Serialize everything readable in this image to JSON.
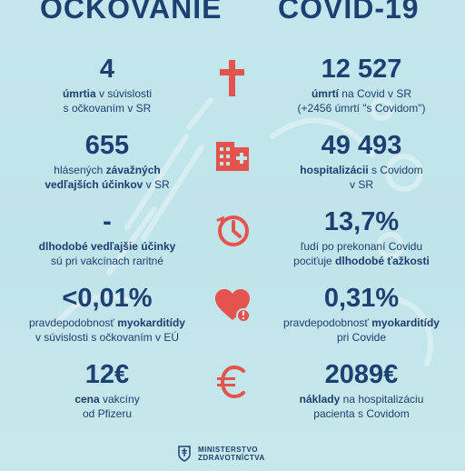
{
  "header": {
    "left_title": "OČKOVANIE",
    "right_title": "COVID-19"
  },
  "rows": [
    {
      "icon": "cross-icon",
      "left": {
        "big": "4",
        "pre": "",
        "bold": "úmrtia",
        "post": " v súvislosti",
        "line2": "s očkovaním v SR"
      },
      "right": {
        "big": "12 527",
        "pre": "",
        "bold": "úmrtí",
        "post": " na Covid v SR",
        "line2": "(+2456 úmrtí \"s Covidom\")"
      }
    },
    {
      "icon": "hospital-icon",
      "left": {
        "big": "655",
        "pre": "hlásených ",
        "bold": "závažných",
        "post": "",
        "line2_bold": "vedľajších účinkov",
        "line2_post": " v SR"
      },
      "right": {
        "big": "49 493",
        "pre": "",
        "bold": "hospitalizácii",
        "post": " s Covidom",
        "line2": "v SR"
      }
    },
    {
      "icon": "clock-icon",
      "left": {
        "big": "-",
        "pre": "",
        "bold": "dlhodobé vedľajšie účinky",
        "post": "",
        "line2": "sú pri vakcínach raritné"
      },
      "right": {
        "big": "13,7%",
        "pre": "ľudí po prekonaní Covidu",
        "bold": "",
        "post": "",
        "line2_pre": "pociťuje ",
        "line2_bold": "dlhodobé ťažkosti"
      }
    },
    {
      "icon": "heart-alert-icon",
      "left": {
        "big": "<0,01%",
        "pre": "pravdepodobnosť ",
        "bold": "myokarditídy",
        "post": "",
        "line2": "v súvislosti s očkovaním v EÚ"
      },
      "right": {
        "big": "0,31%",
        "pre": "pravdepodobnosť ",
        "bold": "myokarditídy",
        "post": "",
        "line2": "pri Covide"
      }
    },
    {
      "icon": "euro-icon",
      "left": {
        "big": "12€",
        "pre": "",
        "bold": "cena",
        "post": " vakcíny",
        "line2": "od Pfizeru"
      },
      "right": {
        "big": "2089€",
        "pre": "",
        "bold": "náklady",
        "post": " na hospitalizáciu",
        "line2": "pacienta s Covidom"
      }
    }
  ],
  "footer": {
    "line1": "MINISTERSTVO",
    "line2": "ZDRAVOTNÍCTVA"
  },
  "colors": {
    "navy": "#1e3f71",
    "icon_red": "#e5534f",
    "background": "#c2e6eb"
  }
}
